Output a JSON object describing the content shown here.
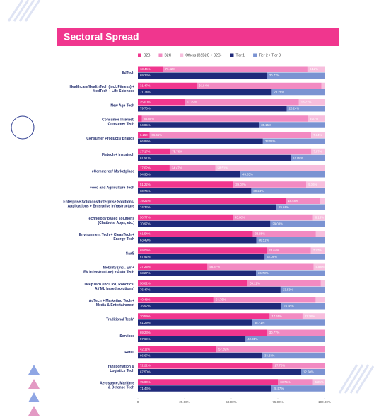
{
  "chart_data": {
    "type": "stacked-barh",
    "title": "Sectoral Spread",
    "categories": [
      "EdTech",
      "Healthcare/HealthTech (incl. Fitness) +\nMedTech + Life Sciences",
      "New Age Tech",
      "Consumer Internet/\nConsumer Tech",
      "Consumer Products/ Brands",
      "Fintech + Insurtech",
      "eCommerce/ Marketplace",
      "Food and Agriculture Tech",
      "Enterprise Solutions/Enterprise Solutions/\nApplications + Enterprise Infrastructure",
      "Technology based solutions\n(Chatbots, Apps, etc.)",
      "Environment Tech + CleanTech +\nEnergy Tech",
      "SaaS",
      "Mobility (incl. EV +\nEV Infrastructure) + Auto Tech",
      "DeepTech (incl. IoT, Robotics,\nAI/ ML based solutions)",
      "AdTech +  Marketing Tech +\nMedia & Entertainment",
      "Traditional Tech*",
      "Services",
      "Retail",
      "Transportation &\nLogistics Tech",
      "Aerospace, Maritime\n& Defense Tech"
    ],
    "series": [
      {
        "name": "B2B",
        "color": "#f0368e",
        "stack": 0,
        "values": [
          13.46,
          31.47,
          25.0,
          2.08,
          6.25,
          17.17,
          17.02,
          51.22,
          79.22,
          50.77,
          61.54,
          69.09,
          37.25,
          58.82,
          40.48,
          70.59,
          69.23,
          42.11,
          72.22,
          75.0
        ],
        "value_labels": [
          "13.46%",
          "31.47%",
          "25.00%",
          "2.08%",
          "6.25%",
          "17.17%",
          "17.02%",
          "51.22%",
          "79.22%",
          "50.77%",
          "61.54%",
          "69.09%",
          "37.25%",
          "58.82%",
          "40.48%",
          "70.59%",
          "69.23%",
          "42.11%",
          "72.22%",
          "75.00%"
        ]
      },
      {
        "name": "B2C",
        "color": "#f28ac2",
        "stack": 0,
        "values": [
          77.42,
          66.84,
          61.29,
          88.85,
          86.61,
          75.76,
          24.47,
          39.02,
          18.48,
          43.08,
          33.85,
          23.64,
          56.87,
          39.22,
          54.76,
          17.65,
          30.77,
          57.89,
          27.78,
          18.75
        ],
        "value_labels": [
          "77.42%",
          "66.84%",
          "61.29%",
          "88.85%",
          "86.61%",
          "75.76%",
          "24.47%",
          "39.02%",
          "18.48%",
          "43.08%",
          "33.85%",
          "23.64%",
          "56.87%",
          "39.22%",
          "54.76%",
          "17.65%",
          "30.77%",
          "57.89%",
          "27.78%",
          "18.75%"
        ]
      },
      {
        "name": "Others (B2B2C + B2G)",
        "color": "#f7bedd",
        "stack": 0,
        "values": [
          9.12,
          1.69,
          13.71,
          9.07,
          7.14,
          7.07,
          58.51,
          9.76,
          2.3,
          6.15,
          4.62,
          7.27,
          5.88,
          1.96,
          4.76,
          11.76,
          0,
          0,
          0,
          6.25
        ],
        "value_labels": [
          "9.12%",
          "1.69%",
          "13.71%",
          "9.07%",
          "7.14%",
          "7.07%",
          "58.51%",
          "9.76%",
          "2.30%",
          "6.15%",
          "4.62%",
          "7.27%",
          "5.88%",
          "1.96%",
          "4.76%",
          "11.76%",
          null,
          null,
          null,
          "6.25%"
        ]
      },
      {
        "name": "Tier 1",
        "color": "#1f2a7a",
        "stack": 1,
        "values": [
          69.23,
          71.74,
          79.76,
          64.85,
          66.98,
          81.91,
          54.95,
          60.76,
          74.32,
          70.97,
          63.49,
          67.92,
          63.27,
          76.47,
          76.92,
          61.29,
          57.69,
          66.67,
          87.5,
          71.43
        ],
        "value_labels": [
          "69.23%",
          "71.74%",
          "79.76%",
          "64.85%",
          "66.98%",
          "81.91%",
          "54.95%",
          "60.76%",
          "74.32%",
          "70.97%",
          "63.49%",
          "67.92%",
          "63.27%",
          "76.47%",
          "76.92%",
          "61.29%",
          "57.69%",
          "66.67%",
          "87.50%",
          "71.43%"
        ]
      },
      {
        "name": "Tier 2 + Tier 3",
        "color": "#7b93d2",
        "stack": 1,
        "values": [
          30.77,
          28.26,
          20.24,
          35.15,
          33.02,
          18.09,
          45.05,
          39.24,
          25.68,
          29.03,
          36.51,
          32.08,
          36.73,
          23.53,
          23.08,
          38.71,
          42.31,
          33.33,
          12.5,
          28.57
        ],
        "value_labels": [
          "30.77%",
          "28.26%",
          "20.24%",
          "35.15%",
          "33.02%",
          "18.09%",
          "45.05%",
          "39.24%",
          "25.68%",
          "29.03%",
          "36.51%",
          "32.08%",
          "36.73%",
          "23.53%",
          "23.08%",
          "38.71%",
          "42.31%",
          "33.33%",
          "12.50%",
          "28.57%"
        ]
      }
    ],
    "xlim": [
      0,
      100
    ],
    "xticks": [
      {
        "value": 0,
        "label": "0"
      },
      {
        "value": 25,
        "label": "25.00%"
      },
      {
        "value": 50,
        "label": "50.00%"
      },
      {
        "value": 75,
        "label": "75.00%"
      },
      {
        "value": 100,
        "label": "100.00%"
      }
    ],
    "legend": "top"
  }
}
